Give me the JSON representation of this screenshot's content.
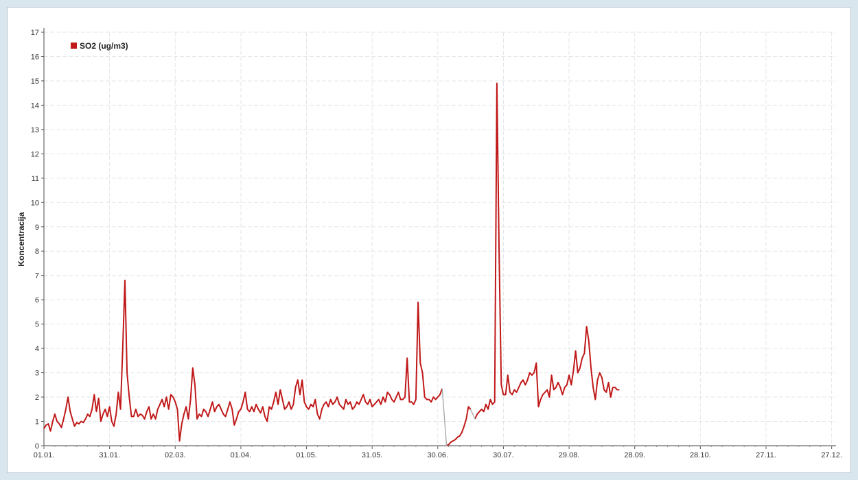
{
  "chart_data": {
    "type": "line",
    "title": "",
    "xlabel": "",
    "ylabel": "Koncentracija",
    "ylim": [
      0,
      17
    ],
    "yticks": [
      0,
      1,
      2,
      3,
      4,
      5,
      6,
      7,
      8,
      9,
      10,
      11,
      12,
      13,
      14,
      15,
      16,
      17
    ],
    "xlim": [
      1,
      363
    ],
    "x_tick_labels": [
      "01.01.",
      "31.01.",
      "02.03.",
      "01.04.",
      "01.05.",
      "31.05.",
      "30.06.",
      "30.07.",
      "29.08.",
      "28.09.",
      "28.10.",
      "27.11.",
      "27.12."
    ],
    "x_tick_days": [
      1,
      31,
      61,
      91,
      121,
      151,
      181,
      211,
      241,
      271,
      301,
      331,
      361
    ],
    "grid": true,
    "legend_position": "top-left",
    "series": [
      {
        "name": "SO2 (ug/m3)",
        "color": "#c01818",
        "points": [
          [
            1,
            0.7
          ],
          [
            2,
            0.85
          ],
          [
            3,
            0.9
          ],
          [
            4,
            0.6
          ],
          [
            5,
            1.0
          ],
          [
            6,
            1.3
          ],
          [
            7,
            1.0
          ],
          [
            8,
            0.9
          ],
          [
            9,
            0.75
          ],
          [
            10,
            1.1
          ],
          [
            11,
            1.5
          ],
          [
            12,
            2.0
          ],
          [
            13,
            1.4
          ],
          [
            14,
            1.1
          ],
          [
            15,
            0.8
          ],
          [
            16,
            0.95
          ],
          [
            17,
            0.9
          ],
          [
            18,
            1.0
          ],
          [
            19,
            0.95
          ],
          [
            20,
            1.1
          ],
          [
            21,
            1.3
          ],
          [
            22,
            1.2
          ],
          [
            23,
            1.5
          ],
          [
            24,
            2.1
          ],
          [
            25,
            1.4
          ],
          [
            26,
            1.95
          ],
          [
            27,
            1.0
          ],
          [
            28,
            1.3
          ],
          [
            29,
            1.5
          ],
          [
            30,
            1.2
          ],
          [
            31,
            1.6
          ],
          [
            32,
            1.0
          ],
          [
            33,
            0.8
          ],
          [
            34,
            1.3
          ],
          [
            35,
            2.2
          ],
          [
            36,
            1.5
          ],
          [
            37,
            4.0
          ],
          [
            38,
            6.8
          ],
          [
            39,
            3.0
          ],
          [
            40,
            2.0
          ],
          [
            41,
            1.2
          ],
          [
            42,
            1.2
          ],
          [
            43,
            1.5
          ],
          [
            44,
            1.2
          ],
          [
            45,
            1.3
          ],
          [
            46,
            1.25
          ],
          [
            47,
            1.1
          ],
          [
            48,
            1.4
          ],
          [
            49,
            1.6
          ],
          [
            50,
            1.1
          ],
          [
            51,
            1.3
          ],
          [
            52,
            1.1
          ],
          [
            53,
            1.5
          ],
          [
            54,
            1.7
          ],
          [
            55,
            1.9
          ],
          [
            56,
            1.6
          ],
          [
            57,
            2.0
          ],
          [
            58,
            1.5
          ],
          [
            59,
            2.1
          ],
          [
            60,
            2.0
          ],
          [
            61,
            1.8
          ],
          [
            62,
            1.5
          ],
          [
            63,
            0.2
          ],
          [
            64,
            0.9
          ],
          [
            65,
            1.3
          ],
          [
            66,
            1.6
          ],
          [
            67,
            1.1
          ],
          [
            68,
            1.9
          ],
          [
            69,
            3.2
          ],
          [
            70,
            2.5
          ],
          [
            71,
            1.1
          ],
          [
            72,
            1.3
          ],
          [
            73,
            1.2
          ],
          [
            74,
            1.5
          ],
          [
            75,
            1.4
          ],
          [
            76,
            1.2
          ],
          [
            77,
            1.5
          ],
          [
            78,
            1.8
          ],
          [
            79,
            1.4
          ],
          [
            80,
            1.6
          ],
          [
            81,
            1.7
          ],
          [
            82,
            1.5
          ],
          [
            83,
            1.3
          ],
          [
            84,
            1.2
          ],
          [
            85,
            1.5
          ],
          [
            86,
            1.8
          ],
          [
            87,
            1.5
          ],
          [
            88,
            0.85
          ],
          [
            89,
            1.1
          ],
          [
            90,
            1.4
          ],
          [
            91,
            1.5
          ],
          [
            92,
            1.8
          ],
          [
            93,
            2.2
          ],
          [
            94,
            1.5
          ],
          [
            95,
            1.4
          ],
          [
            96,
            1.6
          ],
          [
            97,
            1.4
          ],
          [
            98,
            1.7
          ],
          [
            99,
            1.5
          ],
          [
            100,
            1.35
          ],
          [
            101,
            1.6
          ],
          [
            102,
            1.2
          ],
          [
            103,
            1.0
          ],
          [
            104,
            1.6
          ],
          [
            105,
            1.5
          ],
          [
            106,
            1.8
          ],
          [
            107,
            2.2
          ],
          [
            108,
            1.7
          ],
          [
            109,
            2.3
          ],
          [
            110,
            1.9
          ],
          [
            111,
            1.5
          ],
          [
            112,
            1.6
          ],
          [
            113,
            1.8
          ],
          [
            114,
            1.5
          ],
          [
            115,
            1.7
          ],
          [
            116,
            2.4
          ],
          [
            117,
            2.7
          ],
          [
            118,
            2.1
          ],
          [
            119,
            2.7
          ],
          [
            120,
            1.8
          ],
          [
            121,
            1.6
          ],
          [
            122,
            1.5
          ],
          [
            123,
            1.7
          ],
          [
            124,
            1.6
          ],
          [
            125,
            1.9
          ],
          [
            126,
            1.3
          ],
          [
            127,
            1.1
          ],
          [
            128,
            1.5
          ],
          [
            129,
            1.7
          ],
          [
            130,
            1.8
          ],
          [
            131,
            1.6
          ],
          [
            132,
            1.9
          ],
          [
            133,
            1.7
          ],
          [
            134,
            1.8
          ],
          [
            135,
            2.0
          ],
          [
            136,
            1.7
          ],
          [
            137,
            1.6
          ],
          [
            138,
            1.5
          ],
          [
            139,
            1.9
          ],
          [
            140,
            1.7
          ],
          [
            141,
            1.8
          ],
          [
            142,
            1.5
          ],
          [
            143,
            1.6
          ],
          [
            144,
            1.8
          ],
          [
            145,
            1.7
          ],
          [
            146,
            1.9
          ],
          [
            147,
            2.1
          ],
          [
            148,
            1.8
          ],
          [
            149,
            1.7
          ],
          [
            150,
            1.9
          ],
          [
            151,
            1.6
          ],
          [
            152,
            1.7
          ],
          [
            153,
            1.8
          ],
          [
            154,
            1.9
          ],
          [
            155,
            1.7
          ],
          [
            156,
            2.0
          ],
          [
            157,
            1.8
          ],
          [
            158,
            2.2
          ],
          [
            159,
            2.1
          ],
          [
            160,
            1.9
          ],
          [
            161,
            1.8
          ],
          [
            162,
            2.0
          ],
          [
            163,
            2.2
          ],
          [
            164,
            1.9
          ],
          [
            165,
            1.9
          ],
          [
            166,
            2.0
          ],
          [
            167,
            3.6
          ],
          [
            168,
            1.8
          ],
          [
            169,
            1.8
          ],
          [
            170,
            1.7
          ],
          [
            171,
            1.9
          ],
          [
            172,
            5.9
          ],
          [
            173,
            3.4
          ],
          [
            174,
            3.0
          ],
          [
            175,
            2.0
          ],
          [
            176,
            1.9
          ],
          [
            177,
            1.9
          ],
          [
            178,
            1.8
          ],
          [
            179,
            2.0
          ],
          [
            180,
            1.9
          ],
          [
            181,
            2.0
          ],
          [
            182,
            2.1
          ],
          [
            183,
            2.35
          ]
        ]
      },
      {
        "name": "",
        "color": "#c01818",
        "points": [
          [
            185,
            0.0
          ],
          [
            186,
            0.05
          ],
          [
            187,
            0.15
          ],
          [
            188,
            0.2
          ],
          [
            189,
            0.25
          ],
          [
            190,
            0.35
          ],
          [
            191,
            0.4
          ],
          [
            192,
            0.55
          ],
          [
            193,
            0.8
          ],
          [
            194,
            1.1
          ],
          [
            195,
            1.6
          ],
          [
            196,
            1.5
          ]
        ]
      },
      {
        "name": "",
        "color": "#c01818",
        "points": [
          [
            198,
            1.1
          ],
          [
            199,
            1.3
          ],
          [
            200,
            1.4
          ],
          [
            201,
            1.5
          ],
          [
            202,
            1.4
          ],
          [
            203,
            1.7
          ],
          [
            204,
            1.5
          ],
          [
            205,
            1.9
          ],
          [
            206,
            1.7
          ],
          [
            207,
            1.8
          ],
          [
            208,
            14.9
          ],
          [
            209,
            8.0
          ],
          [
            210,
            2.5
          ],
          [
            211,
            2.1
          ],
          [
            212,
            2.1
          ],
          [
            213,
            2.9
          ],
          [
            214,
            2.2
          ],
          [
            215,
            2.1
          ],
          [
            216,
            2.3
          ],
          [
            217,
            2.2
          ],
          [
            218,
            2.4
          ],
          [
            219,
            2.6
          ],
          [
            220,
            2.7
          ],
          [
            221,
            2.5
          ],
          [
            222,
            2.7
          ],
          [
            223,
            3.0
          ],
          [
            224,
            2.9
          ],
          [
            225,
            3.0
          ],
          [
            226,
            3.4
          ],
          [
            227,
            1.6
          ],
          [
            228,
            1.9
          ],
          [
            229,
            2.1
          ],
          [
            230,
            2.2
          ],
          [
            231,
            2.3
          ],
          [
            232,
            2.0
          ],
          [
            233,
            2.9
          ],
          [
            234,
            2.3
          ],
          [
            235,
            2.4
          ],
          [
            236,
            2.6
          ],
          [
            237,
            2.4
          ],
          [
            238,
            2.1
          ],
          [
            239,
            2.4
          ],
          [
            240,
            2.5
          ],
          [
            241,
            2.9
          ],
          [
            242,
            2.5
          ],
          [
            243,
            3.1
          ],
          [
            244,
            3.9
          ],
          [
            245,
            3.0
          ],
          [
            246,
            3.2
          ],
          [
            247,
            3.6
          ],
          [
            248,
            3.8
          ],
          [
            249,
            4.9
          ],
          [
            250,
            4.3
          ],
          [
            251,
            3.2
          ],
          [
            252,
            2.4
          ],
          [
            253,
            1.9
          ],
          [
            254,
            2.7
          ],
          [
            255,
            3.0
          ],
          [
            256,
            2.8
          ],
          [
            257,
            2.3
          ],
          [
            258,
            2.2
          ],
          [
            259,
            2.6
          ],
          [
            260,
            2.0
          ],
          [
            261,
            2.4
          ],
          [
            262,
            2.4
          ],
          [
            263,
            2.3
          ],
          [
            264,
            2.3
          ]
        ]
      },
      {
        "name": "",
        "color": "#a9a9a9",
        "points": [
          [
            183,
            2.35
          ],
          [
            185,
            0.0
          ]
        ]
      },
      {
        "name": "",
        "color": "#a9a9a9",
        "points": [
          [
            196,
            1.5
          ],
          [
            198,
            1.1
          ]
        ]
      }
    ]
  }
}
